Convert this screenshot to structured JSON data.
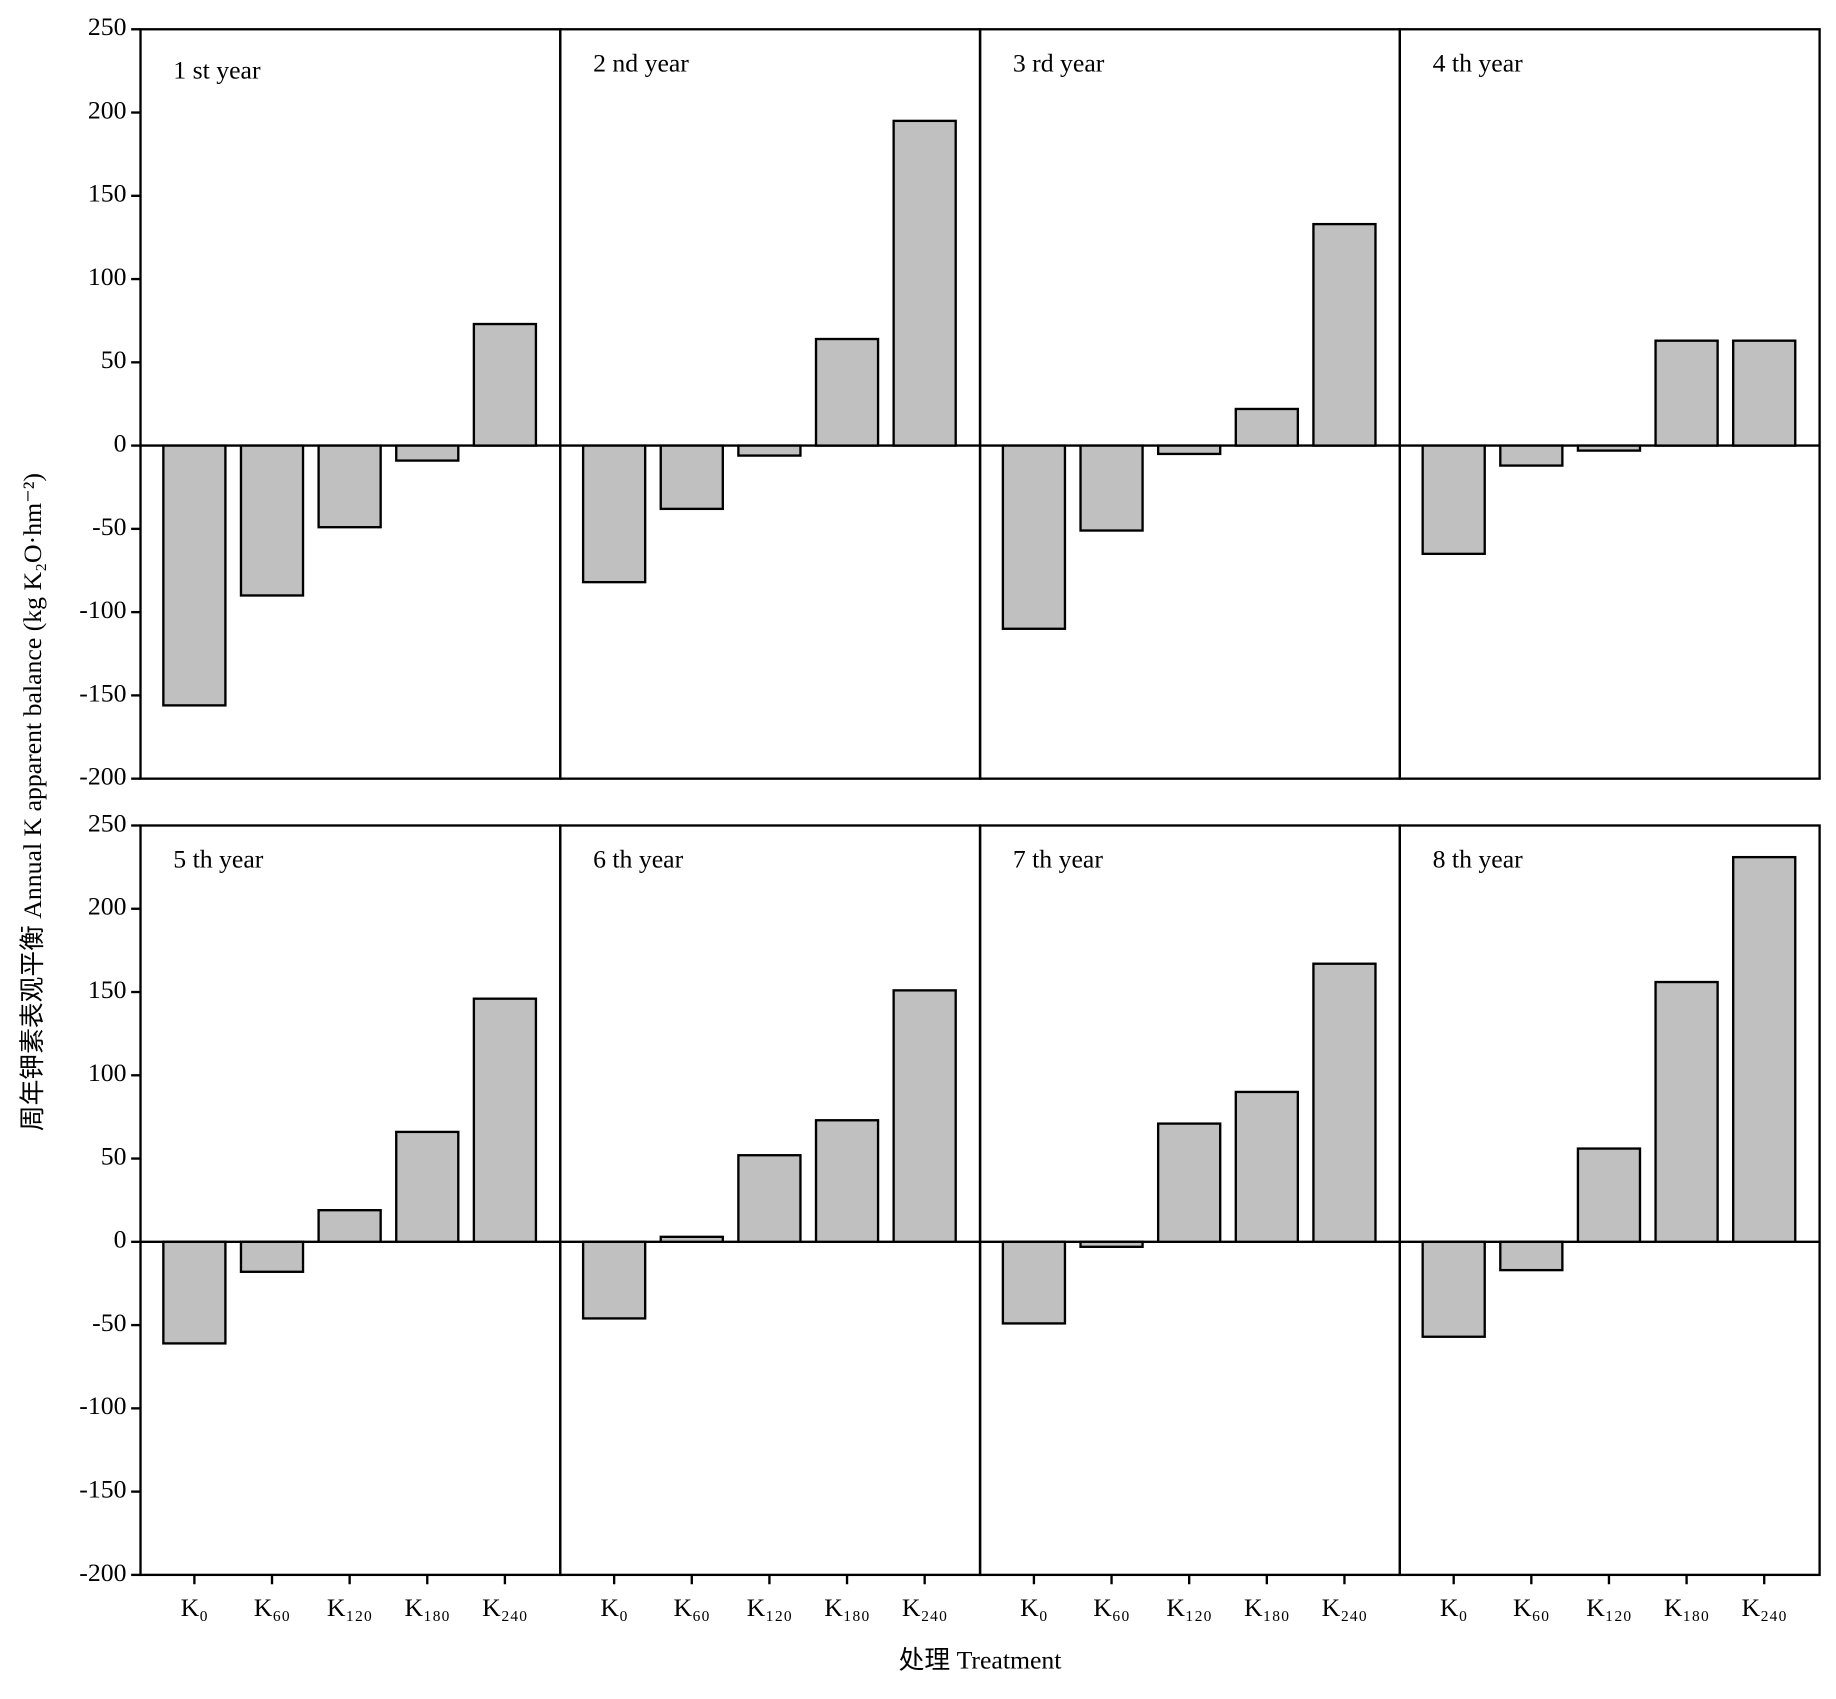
{
  "chart_data": {
    "type": "bar",
    "y_label": "周年钾素表观平衡 Annual K apparent balance (kg K₂O·hm⁻²)",
    "x_label": "处理 Treatment",
    "categories": [
      "K₀",
      "K₆₀",
      "K₁₂₀",
      "K₁₈₀",
      "K₂₄₀"
    ],
    "color": "#c0c0c0",
    "ylim": [
      -200,
      250
    ],
    "yticks": [
      -200,
      -150,
      -100,
      -50,
      0,
      50,
      100,
      150,
      200,
      250
    ],
    "panels": [
      {
        "title": "1 st year",
        "values": [
          -156,
          -90,
          -49,
          -9,
          73
        ]
      },
      {
        "title": "2 nd year",
        "values": [
          -82,
          -38,
          -6,
          64,
          195
        ]
      },
      {
        "title": "3 rd year",
        "values": [
          -110,
          -51,
          -5,
          22,
          133
        ]
      },
      {
        "title": "4 th year",
        "values": [
          -65,
          -12,
          -3,
          63,
          63
        ]
      },
      {
        "title": "5 th year",
        "values": [
          -61,
          -18,
          19,
          66,
          146
        ]
      },
      {
        "title": "6 th year",
        "values": [
          -46,
          3,
          52,
          73,
          151
        ]
      },
      {
        "title": "7 th year",
        "values": [
          -49,
          -3,
          71,
          90,
          167
        ]
      },
      {
        "title": "8 th year",
        "values": [
          -57,
          -17,
          56,
          156,
          231
        ]
      }
    ]
  }
}
